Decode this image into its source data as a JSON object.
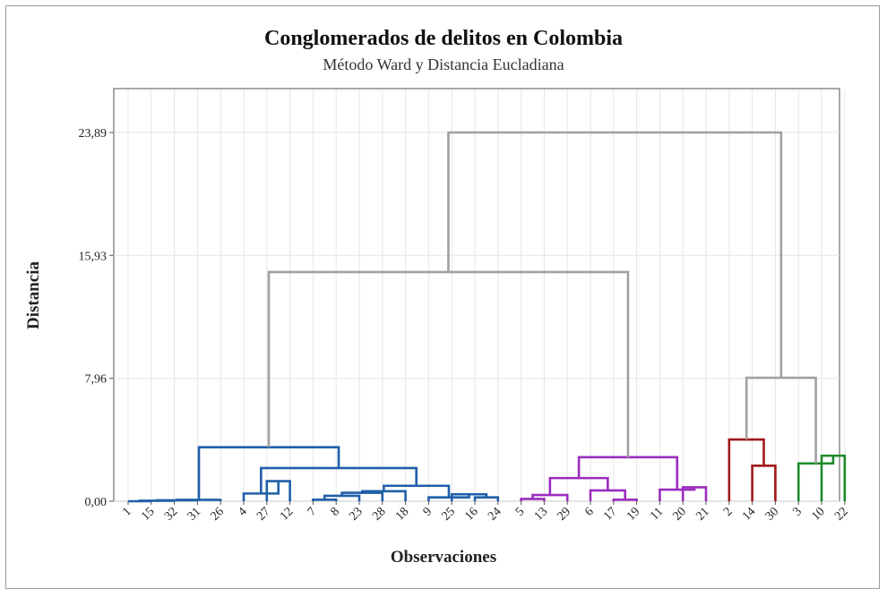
{
  "chart_data": {
    "type": "dendrogram",
    "title": "Conglomerados de delitos en Colombia",
    "subtitle": "Método Ward y Distancia Eucladiana",
    "xlabel": "Observaciones",
    "ylabel": "Distancia",
    "y_ticks": [
      0,
      7.96,
      15.93,
      23.89
    ],
    "y_tick_labels": [
      "0,00",
      "7,96",
      "15,93",
      "23,89"
    ],
    "ylim": [
      0,
      23.89
    ],
    "grid": true,
    "leaf_order": [
      "1",
      "15",
      "32",
      "31",
      "26",
      "4",
      "27",
      "12",
      "7",
      "8",
      "23",
      "28",
      "18",
      "9",
      "25",
      "16",
      "24",
      "5",
      "13",
      "29",
      "6",
      "17",
      "19",
      "11",
      "20",
      "21",
      "2",
      "14",
      "30",
      "3",
      "10",
      "22"
    ],
    "cluster_colors": {
      "blue": "#1f5fa8",
      "purple": "#9b2cbf",
      "red": "#a01818",
      "green": "#1c8a2a",
      "gray": "#a0a0a0"
    },
    "merges": [
      {
        "id": "m1",
        "children": [
          "1",
          "15"
        ],
        "height": 0.0,
        "color": "blue"
      },
      {
        "id": "m2",
        "children": [
          "m1",
          "32"
        ],
        "height": 0.03,
        "color": "blue"
      },
      {
        "id": "m3",
        "children": [
          "m2",
          "31"
        ],
        "height": 0.06,
        "color": "blue"
      },
      {
        "id": "m4",
        "children": [
          "m3",
          "26"
        ],
        "height": 0.09,
        "color": "blue"
      },
      {
        "id": "m5",
        "children": [
          "27",
          "12"
        ],
        "height": 1.3,
        "color": "blue"
      },
      {
        "id": "m6",
        "children": [
          "4",
          "m5"
        ],
        "height": 0.5,
        "color": "blue"
      },
      {
        "id": "m7",
        "children": [
          "7",
          "8"
        ],
        "height": 0.1,
        "color": "blue"
      },
      {
        "id": "m8",
        "children": [
          "m7",
          "23"
        ],
        "height": 0.35,
        "color": "blue"
      },
      {
        "id": "m9",
        "children": [
          "m8",
          "28"
        ],
        "height": 0.55,
        "color": "blue"
      },
      {
        "id": "m10",
        "children": [
          "m9",
          "18"
        ],
        "height": 0.65,
        "color": "blue"
      },
      {
        "id": "m11",
        "children": [
          "16",
          "24"
        ],
        "height": 0.25,
        "color": "blue"
      },
      {
        "id": "m12",
        "children": [
          "25",
          "m11"
        ],
        "height": 0.45,
        "color": "blue"
      },
      {
        "id": "m13",
        "children": [
          "9",
          "m12"
        ],
        "height": 0.25,
        "color": "blue"
      },
      {
        "id": "m14",
        "children": [
          "m10",
          "m13"
        ],
        "height": 1.0,
        "color": "blue"
      },
      {
        "id": "m15",
        "children": [
          "m6",
          "m14"
        ],
        "height": 2.15,
        "color": "blue"
      },
      {
        "id": "m16",
        "children": [
          "m4",
          "m15"
        ],
        "height": 3.5,
        "color": "blue"
      },
      {
        "id": "m17",
        "children": [
          "5",
          "13"
        ],
        "height": 0.15,
        "color": "purple"
      },
      {
        "id": "m18",
        "children": [
          "m17",
          "29"
        ],
        "height": 0.4,
        "color": "purple"
      },
      {
        "id": "m19",
        "children": [
          "17",
          "19"
        ],
        "height": 0.1,
        "color": "purple"
      },
      {
        "id": "m20",
        "children": [
          "6",
          "m19"
        ],
        "height": 0.7,
        "color": "purple"
      },
      {
        "id": "m21",
        "children": [
          "m18",
          "m20"
        ],
        "height": 1.5,
        "color": "purple"
      },
      {
        "id": "m22",
        "children": [
          "20",
          "21"
        ],
        "height": 0.9,
        "color": "purple"
      },
      {
        "id": "m23",
        "children": [
          "11",
          "m22"
        ],
        "height": 0.75,
        "color": "purple"
      },
      {
        "id": "m24",
        "children": [
          "m21",
          "m23"
        ],
        "height": 2.85,
        "color": "purple"
      },
      {
        "id": "m25",
        "children": [
          "m16",
          "m24"
        ],
        "height": 14.85,
        "color": "gray"
      },
      {
        "id": "m26",
        "children": [
          "14",
          "30"
        ],
        "height": 2.3,
        "color": "red"
      },
      {
        "id": "m27",
        "children": [
          "2",
          "m26"
        ],
        "height": 4.0,
        "color": "red"
      },
      {
        "id": "m28",
        "children": [
          "10",
          "22"
        ],
        "height": 2.95,
        "color": "green"
      },
      {
        "id": "m29",
        "children": [
          "3",
          "m28"
        ],
        "height": 2.45,
        "color": "green"
      },
      {
        "id": "m30",
        "children": [
          "m27",
          "m29"
        ],
        "height": 8.0,
        "color": "gray"
      },
      {
        "id": "m31",
        "children": [
          "m25",
          "m30"
        ],
        "height": 23.89,
        "color": "gray"
      }
    ]
  }
}
